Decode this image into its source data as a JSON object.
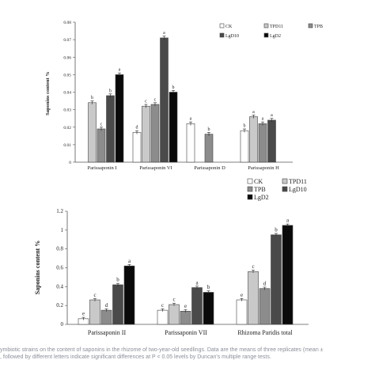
{
  "chart_data": [
    {
      "type": "bar",
      "ylabel": "Saponins content %",
      "ylim": [
        0,
        0.08
      ],
      "yticks": [
        "0",
        "0.01",
        "0.02",
        "0.03",
        "0.04",
        "0.05",
        "0.06",
        "0.07",
        "0.08"
      ],
      "categories": [
        "Parissaponin I",
        "Parissaponin VI",
        "Parissaponin D",
        "Parissaponin H"
      ],
      "legend_position": "top-right",
      "series": [
        {
          "name": "CK",
          "color": "#ffffff",
          "values": [
            null,
            0.017,
            0.022,
            0.018
          ],
          "labels": [
            "",
            "d",
            "a",
            "b"
          ]
        },
        {
          "name": "TPD11",
          "color": "#c9c9c9",
          "values": [
            0.034,
            0.032,
            null,
            0.026
          ],
          "labels": [
            "b",
            "c",
            "",
            "a"
          ]
        },
        {
          "name": "TPB",
          "color": "#8c8c8c",
          "values": [
            0.019,
            0.033,
            0.016,
            0.022
          ],
          "labels": [
            "c",
            "c",
            "b",
            "a"
          ]
        },
        {
          "name": "LgD10",
          "color": "#4a4a4a",
          "values": [
            0.038,
            0.071,
            null,
            0.024
          ],
          "labels": [
            "b",
            "a",
            "",
            "a"
          ]
        },
        {
          "name": "LgD2",
          "color": "#0a0a0a",
          "values": [
            0.05,
            0.04,
            null,
            null
          ],
          "labels": [
            "a",
            "b",
            "",
            ""
          ]
        }
      ]
    },
    {
      "type": "bar",
      "ylabel": "Saponins content %",
      "ylim": [
        0,
        1.2
      ],
      "yticks": [
        "0",
        "0.2",
        "0.4",
        "0.6",
        "0.8",
        "1",
        "1.2"
      ],
      "categories": [
        "Parissaponin II",
        "Parissaponin VII",
        "Rhizoma Paridis total"
      ],
      "legend_position": "top-right",
      "series": [
        {
          "name": "CK",
          "color": "#ffffff",
          "values": [
            0.06,
            0.15,
            0.26
          ],
          "labels": [
            "e",
            "c",
            "e"
          ]
        },
        {
          "name": "TPD11",
          "color": "#c9c9c9",
          "values": [
            0.26,
            0.21,
            0.56
          ],
          "labels": [
            "c",
            "c",
            "c"
          ]
        },
        {
          "name": "TPB",
          "color": "#8c8c8c",
          "values": [
            0.15,
            0.14,
            0.38
          ],
          "labels": [
            "d",
            "e",
            "d"
          ]
        },
        {
          "name": "LgD10",
          "color": "#4a4a4a",
          "values": [
            0.42,
            0.39,
            0.95
          ],
          "labels": [
            "b",
            "a",
            "b"
          ]
        },
        {
          "name": "LgD2",
          "color": "#0a0a0a",
          "values": [
            0.62,
            0.34,
            1.05
          ],
          "labels": [
            "a",
            "b",
            "a"
          ]
        }
      ]
    }
  ],
  "caption": {
    "line1": "ymbiotic strains on the content of saponins in the rhizome of two-year-old seedlings. Data are the means of three replicates (mean ±",
    "line2": ", followed by different letters indicate significant differences at P < 0.05 levels by Duncan's multiple range tests."
  }
}
